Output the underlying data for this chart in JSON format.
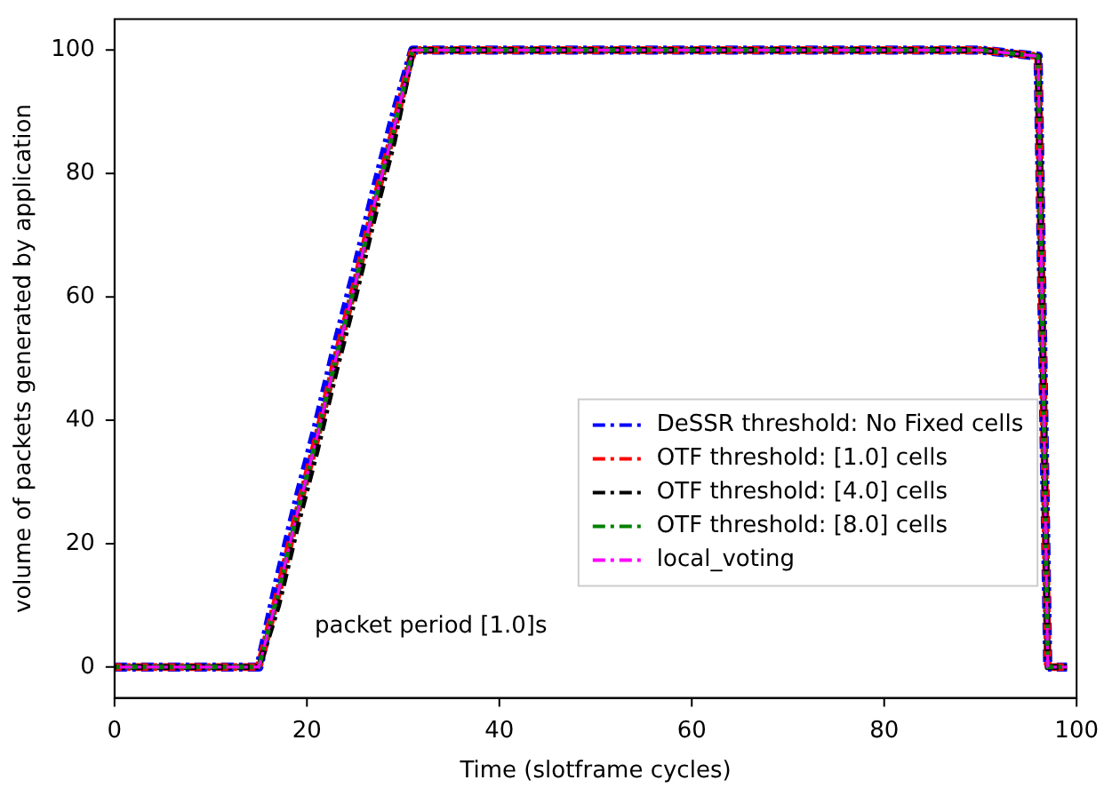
{
  "chart_data": {
    "type": "line",
    "xlabel": "Time (slotframe cycles)",
    "ylabel": "volume of packets generated by application",
    "x": [
      0,
      15,
      17,
      19,
      21,
      23,
      25,
      27,
      29,
      31,
      40,
      50,
      60,
      70,
      80,
      90,
      96,
      97,
      99
    ],
    "series": [
      {
        "name": "DeSSR threshold: No Fixed cells",
        "color": "#0000ff",
        "values": [
          0,
          0,
          14,
          27,
          39,
          52,
          64,
          77,
          89,
          100,
          100,
          100,
          100,
          100,
          100,
          100,
          99,
          0,
          0
        ]
      },
      {
        "name": "OTF threshold: [1.0] cells",
        "color": "#ff0000",
        "values": [
          0,
          0,
          12,
          25,
          37,
          50,
          62,
          75,
          87,
          100,
          100,
          100,
          100,
          100,
          100,
          100,
          99,
          0,
          0
        ]
      },
      {
        "name": "OTF threshold: [4.0] cells",
        "color": "#000000",
        "values": [
          0,
          0,
          10,
          23,
          35,
          48,
          60,
          73,
          85,
          100,
          100,
          100,
          100,
          100,
          100,
          100,
          99,
          0,
          0
        ]
      },
      {
        "name": "OTF threshold: [8.0] cells",
        "color": "#008000",
        "values": [
          0,
          0,
          12,
          25,
          37,
          50,
          62,
          75,
          87,
          100,
          100,
          100,
          100,
          100,
          100,
          100,
          99,
          0,
          0
        ]
      },
      {
        "name": "local_voting",
        "color": "#ff00ff",
        "values": [
          0,
          0,
          12,
          25,
          37,
          50,
          62,
          75,
          87,
          100,
          100,
          100,
          100,
          100,
          100,
          100,
          99,
          0,
          0
        ]
      }
    ],
    "xlim": [
      0,
      100
    ],
    "xticks": [
      0,
      20,
      40,
      60,
      80,
      100
    ],
    "ylim": [
      -5,
      105
    ],
    "yticks": [
      0,
      20,
      40,
      60,
      80,
      100
    ],
    "annotations": [
      "packet period [1.0]s"
    ],
    "legend": "right",
    "marker": "none",
    "line_style": "dashed",
    "grid": false
  }
}
